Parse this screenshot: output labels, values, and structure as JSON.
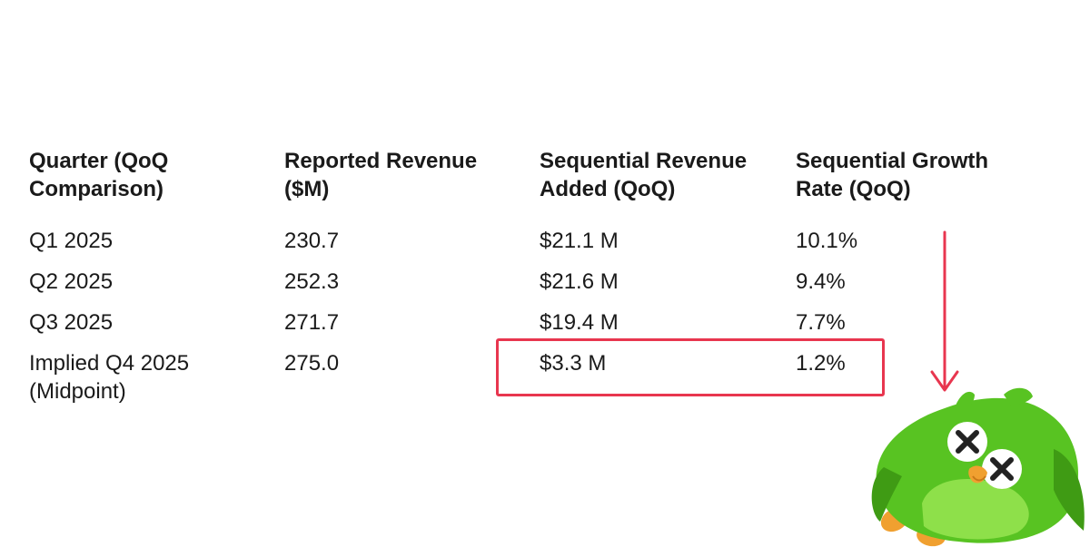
{
  "table": {
    "headers": [
      [
        "Quarter (QoQ",
        "Comparison)"
      ],
      [
        "Reported Revenue",
        "($M)"
      ],
      [
        "Sequential Revenue",
        "Added (QoQ)"
      ],
      [
        "Sequential Growth",
        "Rate (QoQ)"
      ]
    ],
    "rows": [
      {
        "quarter": [
          "Q1 2025"
        ],
        "revenue": "230.7",
        "added": "$21.1 M",
        "growth": "10.1%"
      },
      {
        "quarter": [
          "Q2 2025"
        ],
        "revenue": "252.3",
        "added": "$21.6 M",
        "growth": "9.4%"
      },
      {
        "quarter": [
          "Q3 2025"
        ],
        "revenue": "271.7",
        "added": "$19.4 M",
        "growth": "7.7%"
      },
      {
        "quarter": [
          "Implied Q4 2025",
          "(Midpoint)"
        ],
        "revenue": "275.0",
        "added": "$3.3 M",
        "growth": "1.2%"
      }
    ]
  },
  "colors": {
    "text": "#1a1a1a",
    "highlight": "#e8364f",
    "mascot_green": "#58c322",
    "mascot_dark_green": "#3f9b14",
    "mascot_orange": "#f0a030"
  },
  "icons": {
    "arrow": "down-arrow-icon",
    "mascot": "green-owl-mascot-icon"
  }
}
